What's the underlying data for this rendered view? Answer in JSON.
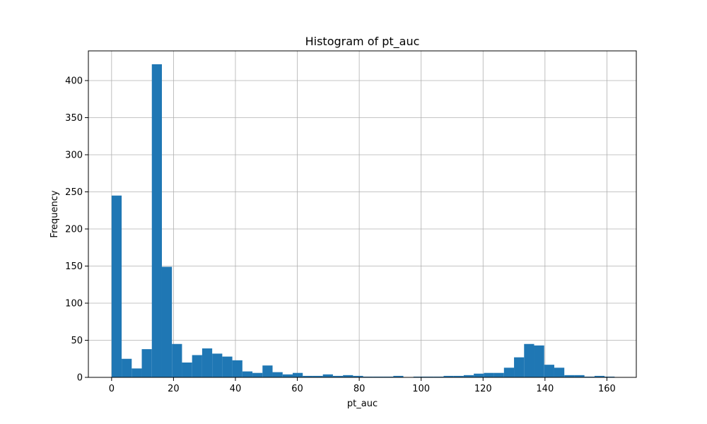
{
  "chart_data": {
    "type": "bar",
    "title": "Histogram of pt_auc",
    "xlabel": "pt_auc",
    "ylabel": "Frequency",
    "xlim": [
      -7.5,
      169.5
    ],
    "ylim": [
      0,
      440
    ],
    "xticks": [
      0,
      20,
      40,
      60,
      80,
      100,
      120,
      140,
      160
    ],
    "yticks": [
      0,
      50,
      100,
      150,
      200,
      250,
      300,
      350,
      400
    ],
    "grid": true,
    "bar_color": "#1f77b4",
    "bin_start": 0,
    "bin_width": 3.25,
    "series": [
      {
        "values": [
          245,
          25,
          12,
          38,
          422,
          149,
          45,
          20,
          30,
          39,
          32,
          28,
          23,
          8,
          6,
          16,
          7,
          4,
          6,
          2,
          2,
          4,
          2,
          3,
          2,
          1,
          1,
          1,
          2,
          0,
          1,
          1,
          1,
          2,
          2,
          3,
          5,
          6,
          6,
          13,
          27,
          45,
          43,
          17,
          13,
          3,
          3,
          1,
          2,
          1
        ]
      }
    ]
  }
}
